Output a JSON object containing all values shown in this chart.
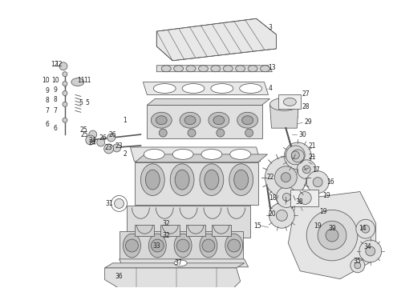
{
  "background_color": "#ffffff",
  "line_color": "#555555",
  "label_color": "#222222",
  "fig_width": 4.9,
  "fig_height": 3.6,
  "dpi": 100,
  "lw": 0.55
}
